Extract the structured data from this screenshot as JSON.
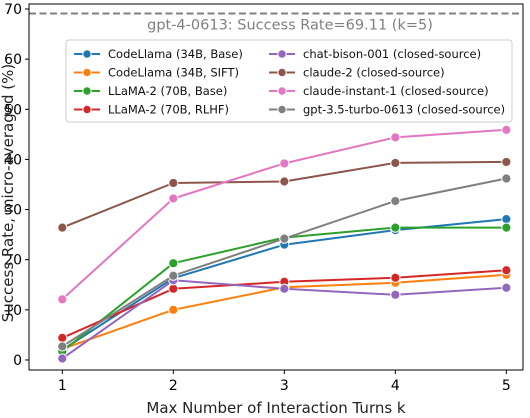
{
  "chart_data": {
    "type": "line",
    "xlabel": "Max Number of Interaction Turns k",
    "ylabel": "Success Rate, micro-averaged (%)",
    "x": [
      1,
      2,
      3,
      4,
      5
    ],
    "xticks": [
      "1",
      "2",
      "3",
      "4",
      "5"
    ],
    "yticks": [
      "0",
      "10",
      "20",
      "30",
      "40",
      "50",
      "60",
      "70"
    ],
    "xlim": [
      0.7,
      5.15
    ],
    "ylim": [
      -2,
      71
    ],
    "grid": false,
    "legend_position": "top-center",
    "legend_columns": 2,
    "reference_line": {
      "value": 69.11,
      "label": "gpt-4-0613: Success Rate=69.11 (k=5)",
      "color": "#808080",
      "style": "dashed"
    },
    "series": [
      {
        "name": "CodeLlama (34B, Base)",
        "color": "#1f77b4",
        "values": [
          2.0,
          16.3,
          23.0,
          25.9,
          28.1
        ]
      },
      {
        "name": "CodeLlama (34B, SIFT)",
        "color": "#ff7f0e",
        "values": [
          2.2,
          10.0,
          14.5,
          15.4,
          17.0
        ]
      },
      {
        "name": "LLaMA-2 (70B, Base)",
        "color": "#2ca02c",
        "values": [
          1.7,
          19.3,
          24.4,
          26.4,
          26.4
        ]
      },
      {
        "name": "LLaMA-2 (70B, RLHF)",
        "color": "#d62728",
        "values": [
          4.4,
          14.2,
          15.6,
          16.4,
          17.9
        ]
      },
      {
        "name": "chat-bison-001 (closed-source)",
        "color": "#9467bd",
        "values": [
          0.3,
          15.9,
          14.2,
          13.0,
          14.4
        ]
      },
      {
        "name": "claude-2 (closed-source)",
        "color": "#8c564b",
        "values": [
          26.4,
          35.3,
          35.6,
          39.3,
          39.5
        ]
      },
      {
        "name": "claude-instant-1 (closed-source)",
        "color": "#e377c2",
        "values": [
          12.1,
          32.2,
          39.2,
          44.4,
          45.9
        ]
      },
      {
        "name": "gpt-3.5-turbo-0613 (closed-source)",
        "color": "#7f7f7f",
        "values": [
          2.7,
          16.8,
          24.2,
          31.7,
          36.2
        ]
      }
    ]
  }
}
